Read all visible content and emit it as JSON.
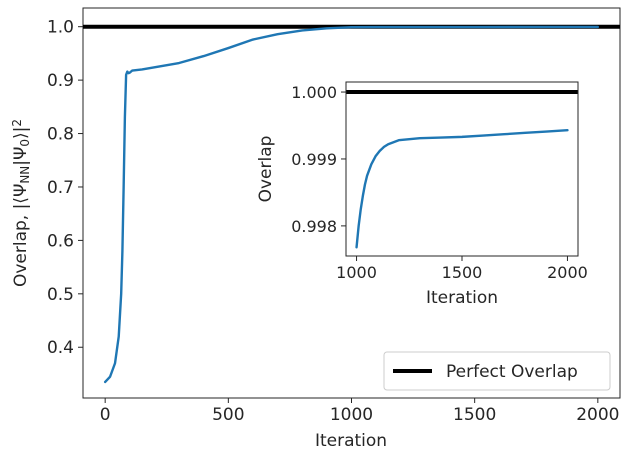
{
  "colors": {
    "series": "#1f77b4",
    "reference": "#000000",
    "axes": "#262626"
  },
  "chart_data": [
    {
      "type": "line",
      "xlabel": "Iteration",
      "ylabel_prefix": "Overlap, |⟨Ψ",
      "ylabel_sub1": "NN",
      "ylabel_mid": "|Ψ",
      "ylabel_sub2": "0",
      "ylabel_suffix": "⟩|",
      "ylabel_sup": "2",
      "xlim": [
        -90,
        2090
      ],
      "ylim": [
        0.305,
        1.035
      ],
      "xticks": [
        0,
        500,
        1000,
        1500,
        2000
      ],
      "xtick_labels": [
        "0",
        "500",
        "1000",
        "1500",
        "2000"
      ],
      "yticks": [
        0.4,
        0.5,
        0.6,
        0.7,
        0.8,
        0.9,
        1.0
      ],
      "ytick_labels": [
        "0.4",
        "0.5",
        "0.6",
        "0.7",
        "0.8",
        "0.9",
        "1.0"
      ],
      "legend": {
        "placement": "lower-right",
        "label": "Perfect Overlap"
      },
      "reference_line": {
        "name": "Perfect Overlap",
        "y": 1.0
      },
      "series": [
        {
          "x": [
            0,
            20,
            40,
            55,
            65,
            70,
            75,
            80,
            85,
            90,
            95,
            100,
            110,
            150,
            200,
            300,
            400,
            500,
            600,
            700,
            800,
            900,
            1000,
            1100,
            1200,
            1500,
            1800,
            2000
          ],
          "y": [
            0.335,
            0.345,
            0.37,
            0.42,
            0.5,
            0.58,
            0.7,
            0.83,
            0.91,
            0.916,
            0.913,
            0.914,
            0.918,
            0.92,
            0.924,
            0.932,
            0.945,
            0.96,
            0.976,
            0.986,
            0.993,
            0.997,
            0.999,
            0.9993,
            0.9994,
            0.9994,
            0.9995,
            0.9995
          ]
        }
      ]
    },
    {
      "type": "line",
      "xlabel": "Iteration",
      "ylabel": "Overlap",
      "xlim": [
        950,
        2050
      ],
      "ylim": [
        0.99755,
        1.00015
      ],
      "xticks": [
        1000,
        1500,
        2000
      ],
      "xtick_labels": [
        "1000",
        "1500",
        "2000"
      ],
      "yticks": [
        0.998,
        0.999,
        1.0
      ],
      "ytick_labels": [
        "0.998",
        "0.999",
        "1.000"
      ],
      "reference_line": {
        "y": 1.0
      },
      "series": [
        {
          "x": [
            1000,
            1010,
            1020,
            1030,
            1040,
            1050,
            1070,
            1090,
            1110,
            1130,
            1150,
            1200,
            1300,
            1400,
            1500,
            1600,
            1700,
            1800,
            1900,
            2000
          ],
          "y": [
            0.99768,
            0.998,
            0.99825,
            0.99845,
            0.99862,
            0.99875,
            0.99892,
            0.99904,
            0.99912,
            0.99918,
            0.99922,
            0.99928,
            0.99931,
            0.99932,
            0.99933,
            0.99935,
            0.99937,
            0.99939,
            0.99941,
            0.99943
          ]
        }
      ]
    }
  ]
}
